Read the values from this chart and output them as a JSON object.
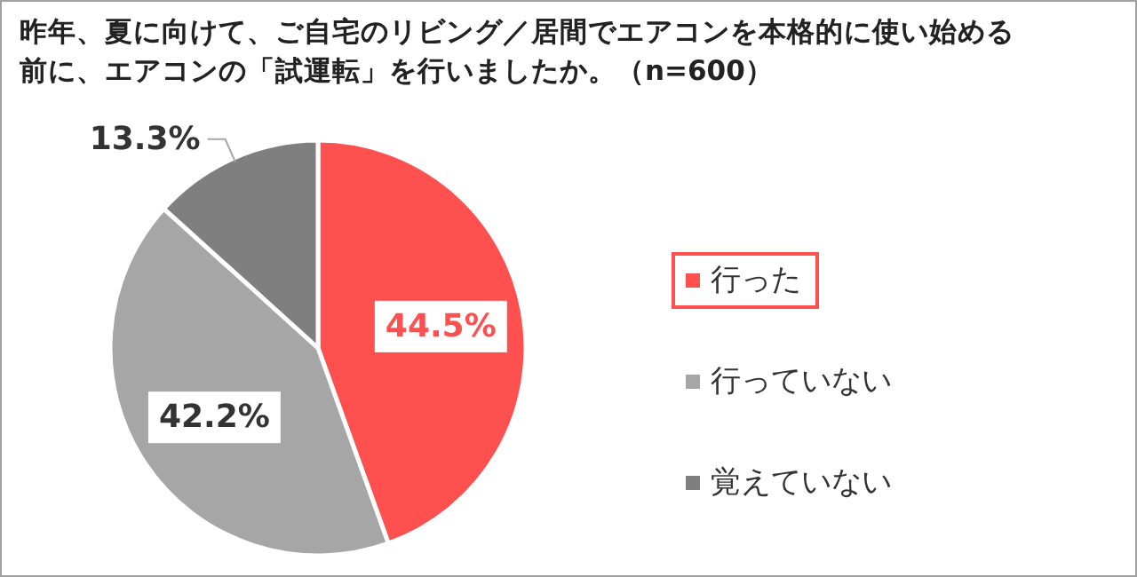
{
  "chart_data": {
    "type": "pie",
    "title": "昨年、夏に向けて、ご自宅のリビング／居間でエアコンを本格的に使い始める前に、エアコンの「試運転」を行いましたか。（n=600）",
    "categories": [
      "行った",
      "行っていない",
      "覚えていない"
    ],
    "values": [
      44.5,
      42.2,
      13.3
    ],
    "value_labels": [
      "44.5%",
      "42.2%",
      "13.3%"
    ],
    "colors": [
      "#ff5050",
      "#a6a6a6",
      "#7f7f7f"
    ],
    "legend": "right"
  }
}
